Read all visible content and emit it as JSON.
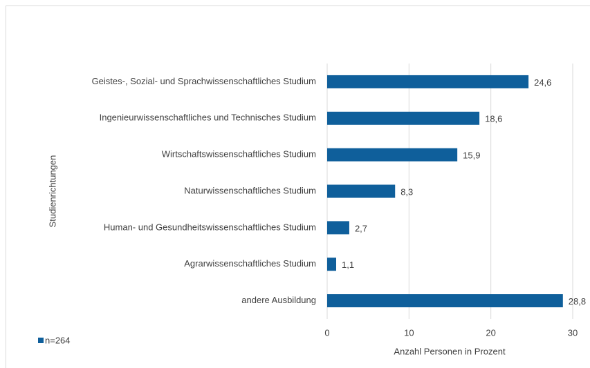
{
  "chart_data": {
    "type": "barh",
    "y_label": "Studienrichtungen",
    "x_label": "Anzahl Personen in Prozent",
    "categories": [
      "Geistes-, Sozial- und Sprachwissenschaftliches Studium",
      "Ingenieurwissenschaftliches und Technisches Studium",
      "Wirtschaftswissenschaftliches Studium",
      "Naturwissenschaftliches Studium",
      "Human- und Gesundheitswissenschaftliches Studium",
      "Agrarwissenschaftliches Studium",
      "andere Ausbildung"
    ],
    "series": [
      {
        "name": "n=264",
        "color": "#0f5f9b",
        "values": [
          24.6,
          18.6,
          15.9,
          8.3,
          2.7,
          1.1,
          28.8
        ],
        "value_labels": [
          "24,6",
          "18,6",
          "15,9",
          "8,3",
          "2,7",
          "1,1",
          "28,8"
        ]
      }
    ],
    "xlim": [
      0,
      30
    ],
    "xticks": [
      0,
      10,
      20,
      30
    ],
    "grid": true,
    "legend": "bottom-left"
  }
}
